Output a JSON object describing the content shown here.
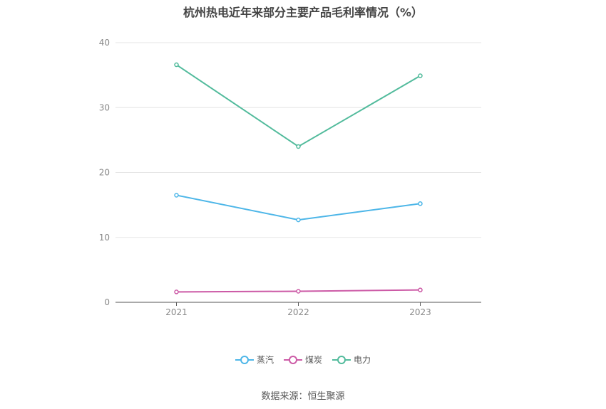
{
  "chart_data": {
    "type": "line",
    "title": "杭州热电近年来部分主要产品毛利率情况（%）",
    "categories": [
      "2021",
      "2022",
      "2023"
    ],
    "series": [
      {
        "name": "蒸汽",
        "color": "#4db6e8",
        "values": [
          16.5,
          12.7,
          15.2
        ]
      },
      {
        "name": "煤炭",
        "color": "#cc5aa6",
        "values": [
          1.6,
          1.7,
          1.9
        ]
      },
      {
        "name": "电力",
        "color": "#52bb9c",
        "values": [
          36.6,
          24.0,
          34.9
        ]
      }
    ],
    "yticks": [
      "0",
      "10",
      "20",
      "30",
      "40"
    ],
    "ylim": [
      0,
      40
    ],
    "grid": true,
    "legend_position": "bottom",
    "source": "数据来源：恒生聚源"
  }
}
